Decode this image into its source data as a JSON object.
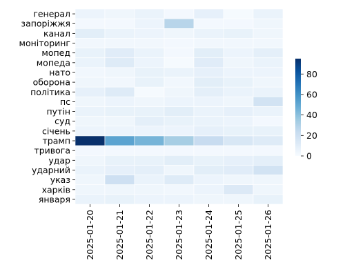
{
  "chart_data": {
    "type": "heatmap",
    "title": "",
    "xlabel": "",
    "ylabel": "",
    "x": [
      "2025-01-20",
      "2025-01-21",
      "2025-01-22",
      "2025-01-23",
      "2025-01-24",
      "2025-01-25",
      "2025-01-26"
    ],
    "y": [
      "генерал",
      "запоріжжя",
      "канал",
      "моніторинг",
      "мопед",
      "мопеда",
      "нато",
      "оборона",
      "політика",
      "пс",
      "путін",
      "суд",
      "січень",
      "трамп",
      "тривога",
      "удар",
      "ударний",
      "указ",
      "харків",
      "января"
    ],
    "values": [
      [
        5,
        4,
        6,
        2,
        8,
        1,
        6
      ],
      [
        2,
        2,
        5,
        28,
        2,
        2,
        4
      ],
      [
        10,
        6,
        5,
        4,
        6,
        7,
        4
      ],
      [
        3,
        3,
        3,
        2,
        3,
        3,
        3
      ],
      [
        7,
        11,
        6,
        2,
        10,
        5,
        9
      ],
      [
        6,
        12,
        5,
        1,
        11,
        4,
        6
      ],
      [
        3,
        4,
        7,
        6,
        8,
        5,
        5
      ],
      [
        4,
        3,
        7,
        3,
        10,
        7,
        4
      ],
      [
        8,
        12,
        1,
        4,
        9,
        6,
        6
      ],
      [
        4,
        5,
        4,
        5,
        5,
        4,
        18
      ],
      [
        6,
        7,
        7,
        10,
        6,
        8,
        6
      ],
      [
        4,
        4,
        9,
        7,
        6,
        5,
        2
      ],
      [
        5,
        5,
        5,
        5,
        8,
        7,
        7
      ],
      [
        95,
        52,
        45,
        33,
        23,
        15,
        12
      ],
      [
        2,
        2,
        2,
        2,
        2,
        2,
        2
      ],
      [
        4,
        7,
        7,
        10,
        7,
        8,
        9
      ],
      [
        6,
        8,
        9,
        4,
        10,
        11,
        18
      ],
      [
        4,
        20,
        6,
        12,
        5,
        4,
        4
      ],
      [
        4,
        4,
        4,
        3,
        5,
        13,
        4
      ],
      [
        6,
        7,
        5,
        5,
        4,
        4,
        7
      ]
    ],
    "colorbar": {
      "ticks": [
        0,
        20,
        40,
        60,
        80
      ],
      "range": [
        0,
        95
      ],
      "colormap": "Blues"
    },
    "grid": false,
    "cell_border_color": "#ffffff"
  }
}
